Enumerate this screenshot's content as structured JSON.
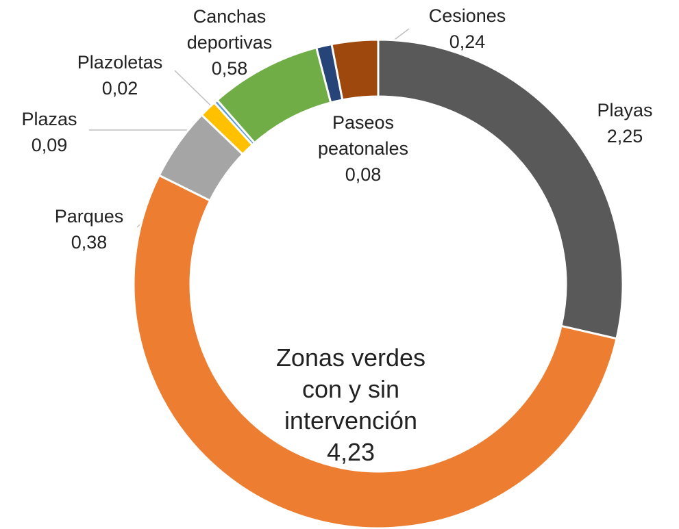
{
  "chart_data": {
    "type": "donut",
    "categories": [
      "Playas",
      "Zonas verdes con y sin intervención",
      "Parques",
      "Plazas",
      "Plazoletas",
      "Canchas deportivas",
      "Paseos peatonales",
      "Cesiones"
    ],
    "values": [
      2.25,
      4.23,
      0.38,
      0.09,
      0.02,
      0.58,
      0.08,
      0.24
    ],
    "value_labels": [
      "2,25",
      "4,23",
      "0,38",
      "0,09",
      "0,02",
      "0,58",
      "0,08",
      "0,24"
    ],
    "colors": [
      "#595959",
      "#ed7d31",
      "#a5a5a5",
      "#ffc000",
      "#5b9bd5",
      "#70ad47",
      "#264478",
      "#9e480e"
    ]
  }
}
